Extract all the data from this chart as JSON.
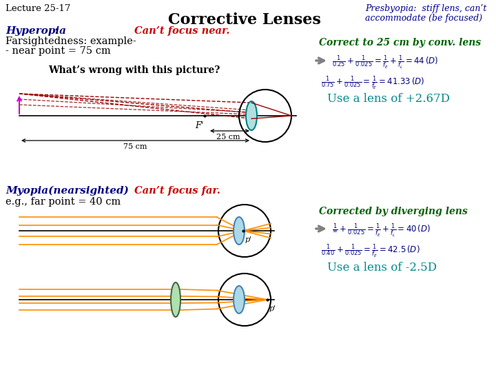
{
  "bg_color": "#ffffff",
  "title": "Corrective Lenses",
  "lecture_label": "Lecture 25-17",
  "presbyopia_line1": "Presbyopia:  stiff lens, can’t",
  "presbyopia_line2": "accommodate (be focused)",
  "hyperopia_title": "Hyperopia",
  "cant_focus_near": "Can’t focus near.",
  "farsighted_line1": "Farsightedness: example-",
  "near_point_line": "- near point = 75 cm",
  "correct_25": "Correct to 25 cm by conv. lens",
  "eq1_left": "$\\frac{1}{0.25}+\\frac{1}{0.025}=$",
  "eq1_right": "$\\frac{1}{f_E}+\\frac{1}{f_L}=44\\,(D)$",
  "eq2": "$\\frac{1}{0.75}+\\frac{1}{0.025}=\\frac{1}{f_E}=41.33\\,(D)$",
  "lens1": "Use a lens of +2.67D",
  "whats_wrong": "What’s wrong with this picture?",
  "myopia_title": "Myopia(nearsighted)",
  "myopia_line2": "e.g., far point = 40 cm",
  "cant_focus_far": "Can’t focus far.",
  "corrected_by": "Corrected by diverging lens",
  "eq3": "$\\frac{1}{\\infty}+\\frac{1}{0.025}=\\frac{1}{f_E}+\\frac{1}{f_L}=40\\,(D)$",
  "eq4": "$\\frac{1}{0.40}+\\frac{1}{0.025}=\\frac{1}{f_E}=42.5\\,(D)$",
  "lens2": "Use a lens of -2.5D",
  "color_blue_dark": "#00008B",
  "color_green_dark": "#006400",
  "color_red": "#CC0000",
  "color_navy": "#000080",
  "color_teal": "#008B8B",
  "color_black": "#000000",
  "color_gray": "#808080"
}
